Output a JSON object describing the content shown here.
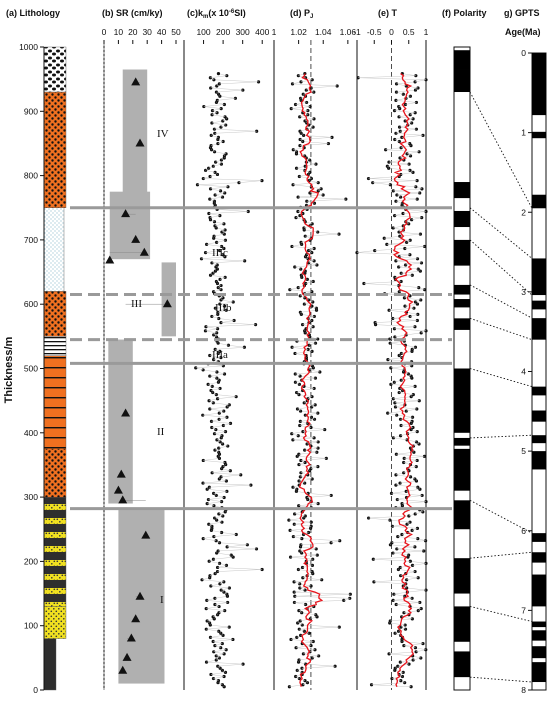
{
  "figure": {
    "y_axis_label": "Thickness/m",
    "thickness_ticks": [
      0,
      100,
      200,
      300,
      400,
      500,
      600,
      700,
      800,
      900,
      1000
    ],
    "thickness_range": [
      0,
      1000
    ]
  },
  "panels": {
    "lithology": {
      "title": "(a) Lithology"
    },
    "sr": {
      "title": "(b) SR (cm/ky)",
      "ticks": [
        "0",
        "10",
        "20",
        "30",
        "40",
        "50"
      ]
    },
    "km": {
      "title_prefix": "(c)k",
      "title_sub": "m",
      "title_mid": "(x 10",
      "title_sup": "-6",
      "title_end": "SI)",
      "ticks": [
        "100",
        "200",
        "300",
        "400"
      ]
    },
    "pj": {
      "title": "(d) P",
      "title_sub": "J",
      "ticks": [
        "1",
        "1.02",
        "1.04",
        "1.06"
      ]
    },
    "t": {
      "title": "(e) T",
      "ticks": [
        "-1",
        "-0.5",
        "0",
        "0.5",
        "1"
      ]
    },
    "polarity": {
      "title": "(f) Polarity"
    },
    "gpts": {
      "title": "g) GPTS",
      "axis_label": "Age(Ma)",
      "ticks": [
        "0",
        "1",
        "2",
        "3",
        "4",
        "5",
        "6",
        "7",
        "8"
      ]
    }
  },
  "unit_labels": {
    "IV": "IV",
    "IIIc": "IIIc",
    "IIIb": "IIIb",
    "III": "III",
    "IIIa": "IIIa",
    "II": "II",
    "I": "I"
  },
  "chart_data": [
    {
      "type": "area",
      "title": "(a) Lithology",
      "ylabel": "Thickness/m",
      "ylim": [
        0,
        1000
      ],
      "layers": [
        {
          "from": 0,
          "to": 80,
          "lith": "claystone"
        },
        {
          "from": 80,
          "to": 130,
          "lith": "sandstone"
        },
        {
          "from": 130,
          "to": 300,
          "lith": "interbedded sandstone and mudstone"
        },
        {
          "from": 300,
          "to": 520,
          "lith": "conglomerate and sandstone"
        },
        {
          "from": 520,
          "to": 550,
          "lith": "laminated siltstone"
        },
        {
          "from": 550,
          "to": 620,
          "lith": "conglomerate"
        },
        {
          "from": 620,
          "to": 750,
          "lith": "siltstone"
        },
        {
          "from": 750,
          "to": 930,
          "lith": "conglomerate"
        },
        {
          "from": 930,
          "to": 1000,
          "lith": "gravel and sand"
        }
      ]
    },
    {
      "type": "scatter",
      "title": "(b) SR (cm/ky)",
      "xlim": [
        0,
        50
      ],
      "ylim": [
        0,
        1000
      ],
      "points": [
        {
          "sr": 13,
          "thickness": 30
        },
        {
          "sr": 16,
          "thickness": 50
        },
        {
          "sr": 19,
          "thickness": 80
        },
        {
          "sr": 22,
          "thickness": 110
        },
        {
          "sr": 25,
          "thickness": 145
        },
        {
          "sr": 29,
          "thickness": 240
        },
        {
          "sr": 13,
          "thickness": 295
        },
        {
          "sr": 10,
          "thickness": 310
        },
        {
          "sr": 12,
          "thickness": 335
        },
        {
          "sr": 15,
          "thickness": 430
        },
        {
          "sr": 44,
          "thickness": 600
        },
        {
          "sr": 4,
          "thickness": 668
        },
        {
          "sr": 28,
          "thickness": 680
        },
        {
          "sr": 22,
          "thickness": 700
        },
        {
          "sr": 15,
          "thickness": 740
        },
        {
          "sr": 25,
          "thickness": 850
        },
        {
          "sr": 22,
          "thickness": 945
        }
      ],
      "ranges": [
        {
          "from": 10,
          "to": 280,
          "xmin": 10,
          "xmax": 42
        },
        {
          "from": 290,
          "to": 545,
          "xmin": 3,
          "xmax": 20
        },
        {
          "from": 550,
          "to": 665,
          "xmin": 40,
          "xmax": 50
        },
        {
          "from": 670,
          "to": 775,
          "xmin": 4,
          "xmax": 32
        },
        {
          "from": 760,
          "to": 965,
          "xmin": 13,
          "xmax": 30
        }
      ]
    },
    {
      "type": "scatter",
      "title": "(c)km(x 10-6SI)",
      "xlim": [
        0,
        450
      ],
      "ylim": [
        0,
        1000
      ],
      "series": [
        {
          "generated": true,
          "center": 170,
          "spread": 35,
          "min": 60,
          "max": 400
        }
      ]
    },
    {
      "type": "line",
      "title": "(d) PJ",
      "xlim": [
        1,
        1.065
      ],
      "ylim": [
        0,
        1000
      ],
      "reference_line": 1.03,
      "series": [
        {
          "generated": true,
          "center": 1.025,
          "spread": 0.006,
          "min": 1.002,
          "max": 1.062
        }
      ]
    },
    {
      "type": "line",
      "title": "(e) T",
      "xlim": [
        -1,
        1
      ],
      "ylim": [
        0,
        1000
      ],
      "reference_line": 0,
      "series": [
        {
          "generated": true,
          "center": 0.45,
          "spread": 0.28,
          "min": -1,
          "max": 1
        }
      ]
    },
    {
      "type": "bar",
      "title": "(f) Polarity",
      "ylim": [
        0,
        1000
      ],
      "normal_intervals": [
        [
          965,
          995
        ],
        [
          930,
          965
        ],
        [
          765,
          790
        ],
        [
          720,
          745
        ],
        [
          660,
          700
        ],
        [
          615,
          630
        ],
        [
          595,
          608
        ],
        [
          560,
          578
        ],
        [
          400,
          500
        ],
        [
          380,
          392
        ],
        [
          310,
          375
        ],
        [
          250,
          295
        ],
        [
          150,
          205
        ],
        [
          75,
          130
        ],
        [
          20,
          60
        ]
      ]
    },
    {
      "type": "bar",
      "title": "g) GPTS",
      "ylabel": "Age(Ma)",
      "ylim": [
        0,
        8
      ],
      "normal_chrons": [
        [
          0,
          0.78
        ],
        [
          0.99,
          1.07
        ],
        [
          1.78,
          1.95
        ],
        [
          2.58,
          3.04
        ],
        [
          3.11,
          3.22
        ],
        [
          3.33,
          3.6
        ],
        [
          4.19,
          4.3
        ],
        [
          4.49,
          4.63
        ],
        [
          4.8,
          4.9
        ],
        [
          5.0,
          5.23
        ],
        [
          6.03,
          6.14
        ],
        [
          6.27,
          6.4
        ],
        [
          6.55,
          6.95
        ],
        [
          7.14,
          7.21
        ],
        [
          7.25,
          7.38
        ],
        [
          7.45,
          7.6
        ],
        [
          7.65,
          7.9
        ]
      ]
    }
  ]
}
